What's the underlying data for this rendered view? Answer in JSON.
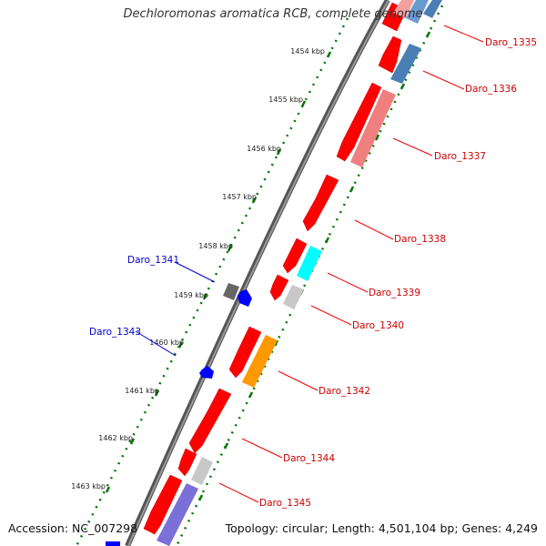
{
  "title": "Dechloromonas aromatica RCB, complete genome",
  "accession": "Accession: NC_007298",
  "topology": "Topology: circular; Length: 4,501,104 bp; Genes: 4,249",
  "kbp_labels": [
    "1454 kbp",
    "1455 kbp",
    "1456 kbp",
    "1457 kbp",
    "1458 kbp",
    "1459 kbp",
    "1460 kbp",
    "1461 kbp",
    "1462 kbp",
    "1463 kbp"
  ],
  "gene_labels": {
    "Daro_1335": "Daro_1335",
    "Daro_1336": "Daro_1336",
    "Daro_1337": "Daro_1337",
    "Daro_1338": "Daro_1338",
    "Daro_1339": "Daro_1339",
    "Daro_1340": "Daro_1340",
    "Daro_1341": "Daro_1341",
    "Daro_1342": "Daro_1342",
    "Daro_1343": "Daro_1343",
    "Daro_1344": "Daro_1344",
    "Daro_1345": "Daro_1345"
  },
  "colors": {
    "label_red": "#cc0000",
    "label_blue": "#0000cc",
    "gene_red": "#ff0000",
    "tick_green": "#007700",
    "backbone_gray": "#777777",
    "gene_blue": "#0000ff",
    "gene_gray": "#666666",
    "light_gray": "#c8c8c8",
    "cyan": "#00ffff",
    "orange": "#ff9900",
    "pink": "#f08080",
    "steel_blue": "#4a7fb5",
    "purple": "#7a70d8"
  }
}
